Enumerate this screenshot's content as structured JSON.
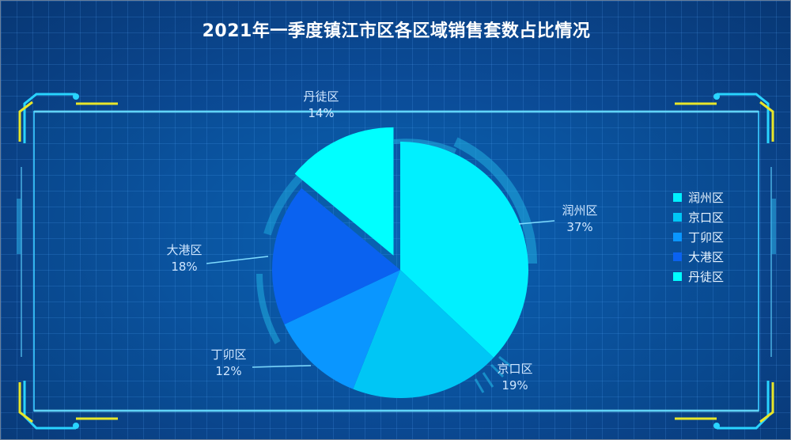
{
  "title": "2021年一季度镇江市区各区域销售套数占比情况",
  "chart_data": {
    "type": "pie",
    "title": "2021年一季度镇江市区各区域销售套数占比情况",
    "slices": [
      {
        "name": "润州区",
        "value": 37,
        "label": "37%",
        "color": "#00f0ff"
      },
      {
        "name": "京口区",
        "value": 19,
        "label": "19%",
        "color": "#00c6f5"
      },
      {
        "name": "丁卯区",
        "value": 12,
        "label": "12%",
        "color": "#0a96ff"
      },
      {
        "name": "大港区",
        "value": 18,
        "label": "18%",
        "color": "#0a62f0"
      },
      {
        "name": "丹徒区",
        "value": 14,
        "label": "14%",
        "color": "#00ffff"
      }
    ],
    "legend_position": "right",
    "exploded": "丹徒区"
  }
}
